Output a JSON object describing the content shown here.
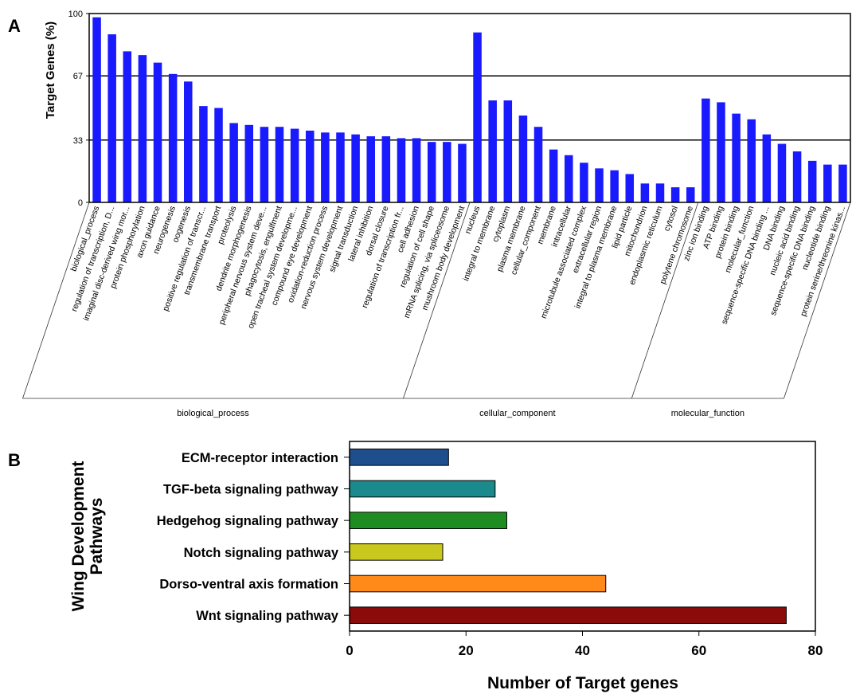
{
  "chart_data": [
    {
      "panel_label": "A",
      "type": "bar",
      "ylabel": "Target Genes (%)",
      "ylim": [
        0,
        100
      ],
      "yticks": [
        "0",
        "33",
        "67",
        "100"
      ],
      "grid_lines_at": [
        33,
        67
      ],
      "bar_color": "#1a1aff",
      "categories": [
        "biological_process",
        "regulation of transcription, D...",
        "imaginal disc-derived wing mor...",
        "protein phosphorylation",
        "axon guidance",
        "neurogenesis",
        "oogenesis",
        "positive regulation of transcr...",
        "transmembrane transport",
        "proteolysis",
        "dendrite morphogenesis",
        "peripheral nervous system deve...",
        "phagocytosis, engulfment",
        "open tracheal system developme...",
        "compound eye development",
        "oxidation-reduction process",
        "nervous system development",
        "signal transduction",
        "lateral inhibition",
        "dorsal closure",
        "regulation of transcription fr...",
        "cell adhesion",
        "regulation of cell shape",
        "mRNA splicing, via spliceosome",
        "mushroom body development",
        "nucleus",
        "integral to membrane",
        "cytoplasm",
        "plasma membrane",
        "cellular_component",
        "membrane",
        "intracellular",
        "microtubule associated complex",
        "extracellular region",
        "integral to plasma membrane",
        "lipid particle",
        "mitochondrion",
        "endoplasmic reticulum",
        "cytosol",
        "polytene chromosome",
        "zinc ion binding",
        "ATP binding",
        "protein binding",
        "molecular_function",
        "sequence-specific DNA binding ...",
        "DNA binding",
        "nucleic acid binding",
        "sequence-specific DNA binding",
        "nucleotide binding",
        "protein serine/threonine kinas..."
      ],
      "values": [
        98,
        89,
        80,
        78,
        74,
        68,
        64,
        51,
        50,
        42,
        41,
        40,
        40,
        39,
        38,
        37,
        37,
        36,
        35,
        35,
        34,
        34,
        32,
        32,
        31,
        90,
        54,
        54,
        46,
        40,
        28,
        25,
        21,
        18,
        17,
        15,
        10,
        10,
        8,
        8,
        55,
        53,
        47,
        44,
        36,
        31,
        27,
        22,
        20,
        20
      ],
      "groups": [
        {
          "name": "biological_process",
          "start": 0,
          "end": 24
        },
        {
          "name": "cellular_component",
          "start": 25,
          "end": 39
        },
        {
          "name": "molecular_function",
          "start": 40,
          "end": 49
        }
      ]
    },
    {
      "panel_label": "B",
      "type": "bar",
      "orientation": "horizontal",
      "ylabel": "Wing Development Pathways",
      "ylabel_lines": [
        "Wing Development",
        "Pathways"
      ],
      "xlabel": "Number of Target genes",
      "xlim": [
        0,
        80
      ],
      "xticks": [
        "0",
        "20",
        "40",
        "60",
        "80"
      ],
      "categories": [
        "ECM-receptor interaction",
        "TGF-beta signaling pathway",
        "Hedgehog signaling pathway",
        "Notch signaling pathway",
        "Dorso-ventral axis formation",
        "Wnt signaling pathway"
      ],
      "values": [
        17,
        25,
        27,
        16,
        44,
        75
      ],
      "colors": [
        "#1f4e8c",
        "#1a8a8c",
        "#1f8c22",
        "#c8c81e",
        "#ff8a1a",
        "#8b0a0a"
      ]
    }
  ]
}
